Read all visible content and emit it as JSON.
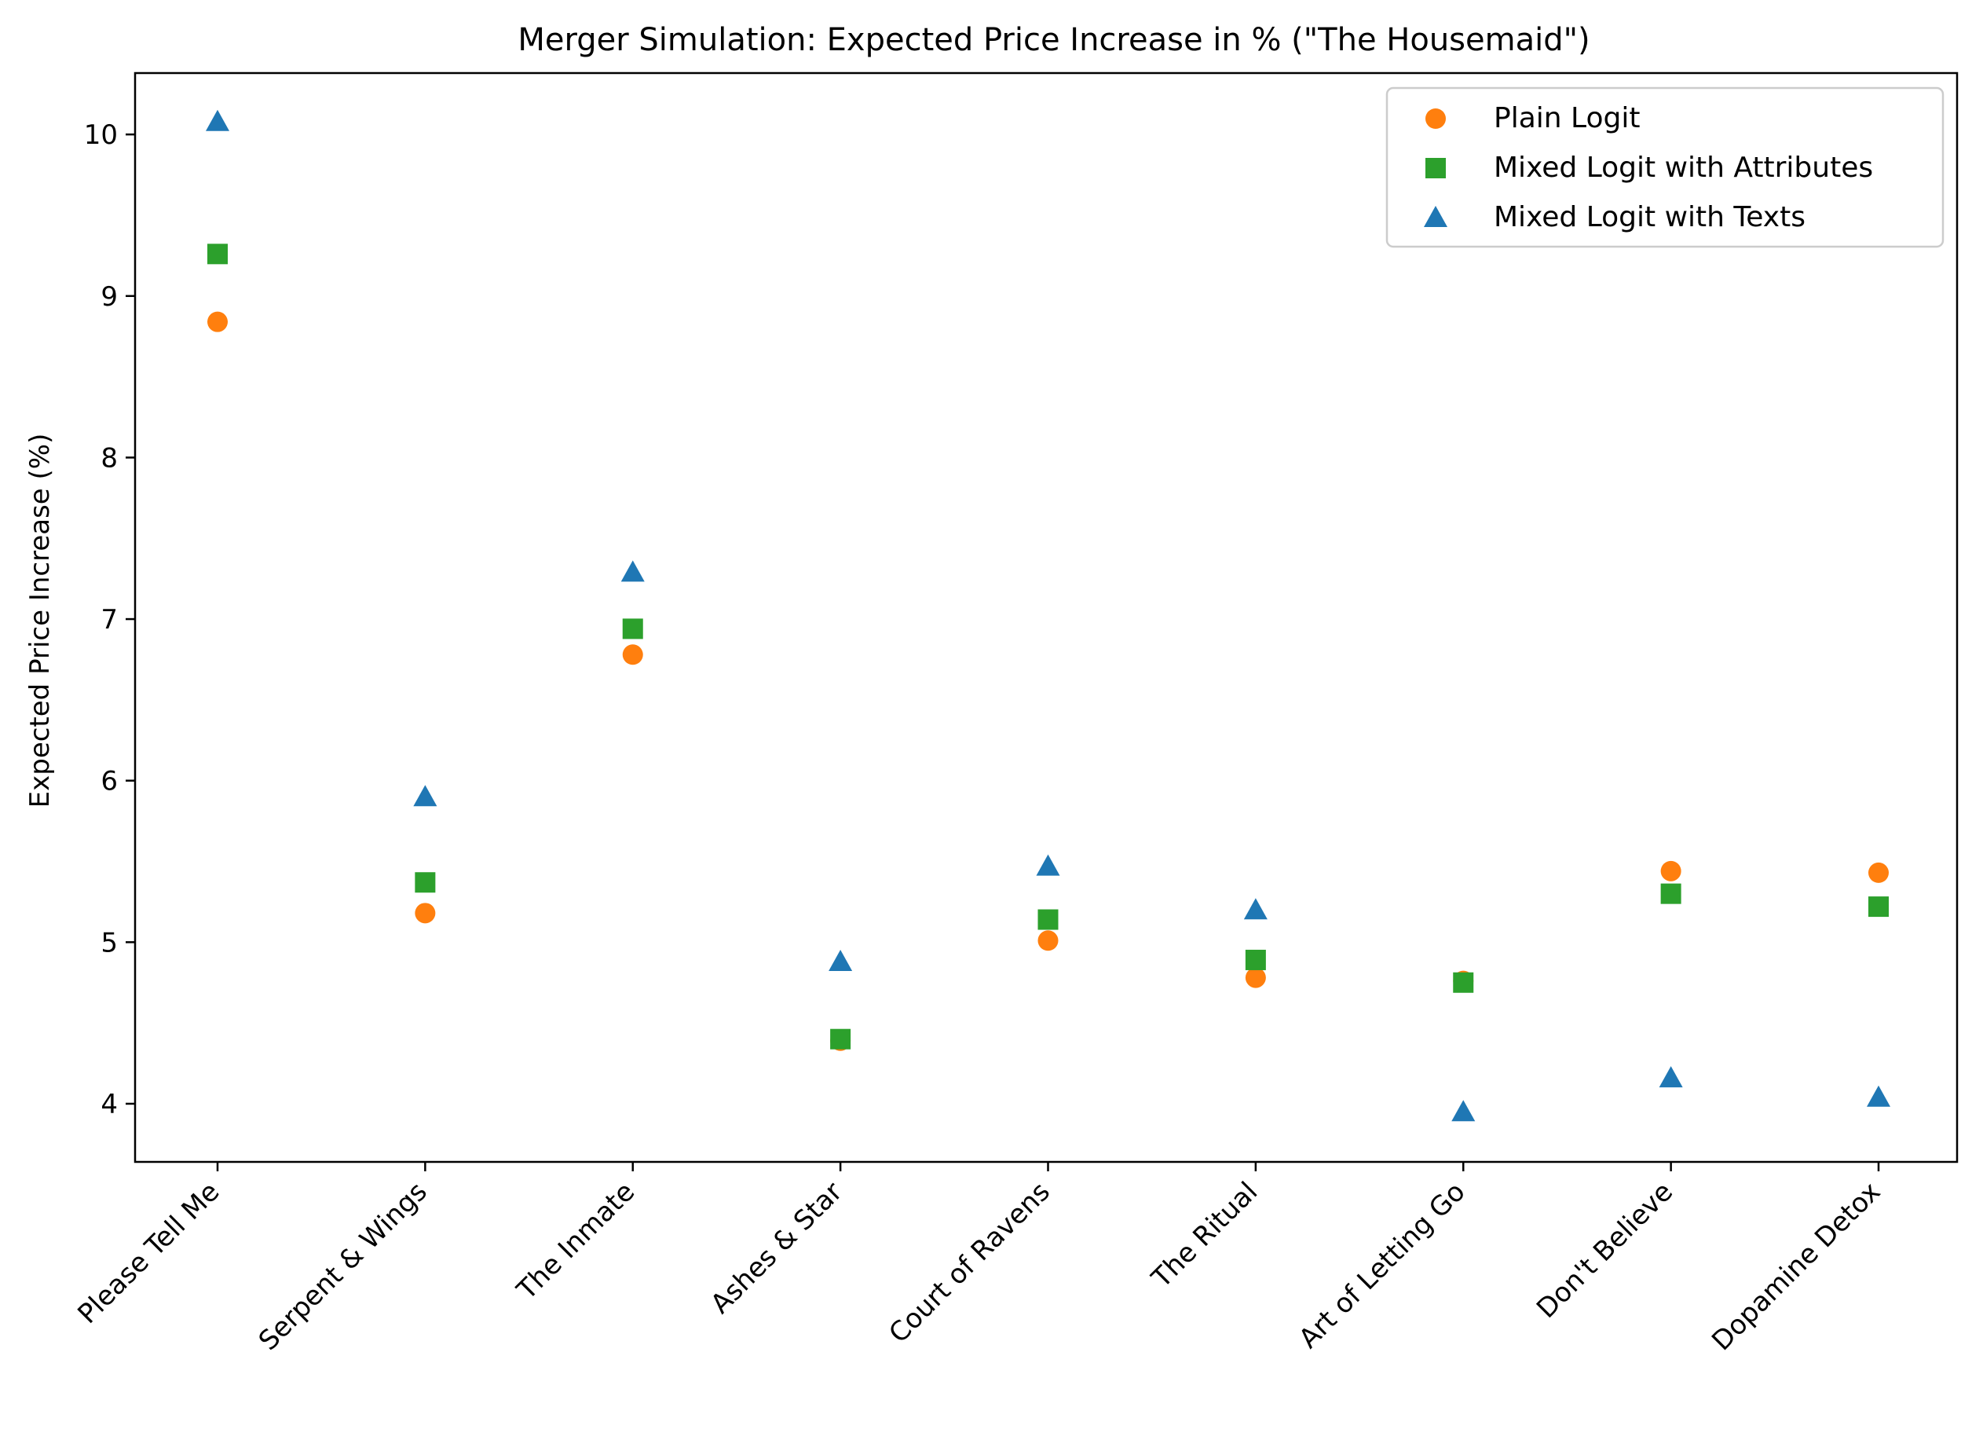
{
  "chart_data": {
    "type": "scatter",
    "title": "Merger Simulation: Expected Price Increase in % (\"The Housemaid\")",
    "xlabel": "",
    "ylabel": "Expected Price Increase (%)",
    "categories": [
      "Please Tell Me",
      "Serpent & Wings",
      "The Inmate",
      "Ashes & Star",
      "Court of Ravens",
      "The Ritual",
      "Art of Letting Go",
      "Don't Believe",
      "Dopamine Detox"
    ],
    "ylim": [
      3.64,
      10.38
    ],
    "yticks": [
      "4",
      "5",
      "6",
      "7",
      "8",
      "9",
      "10"
    ],
    "grid": false,
    "legend_position": "top-right",
    "series": [
      {
        "name": "Plain Logit",
        "marker": "circle",
        "color": "#ff7f0e",
        "values": [
          8.84,
          5.18,
          6.78,
          4.39,
          5.01,
          4.78,
          4.76,
          5.44,
          5.43
        ]
      },
      {
        "name": "Mixed Logit with Attributes",
        "marker": "square",
        "color": "#2ca02c",
        "values": [
          9.26,
          5.37,
          6.94,
          4.4,
          5.14,
          4.89,
          4.75,
          5.3,
          5.22
        ]
      },
      {
        "name": "Mixed Logit with Texts",
        "marker": "triangle",
        "color": "#1f77b4",
        "values": [
          10.08,
          5.9,
          7.29,
          4.88,
          5.47,
          5.2,
          3.95,
          4.16,
          4.04
        ]
      }
    ]
  }
}
